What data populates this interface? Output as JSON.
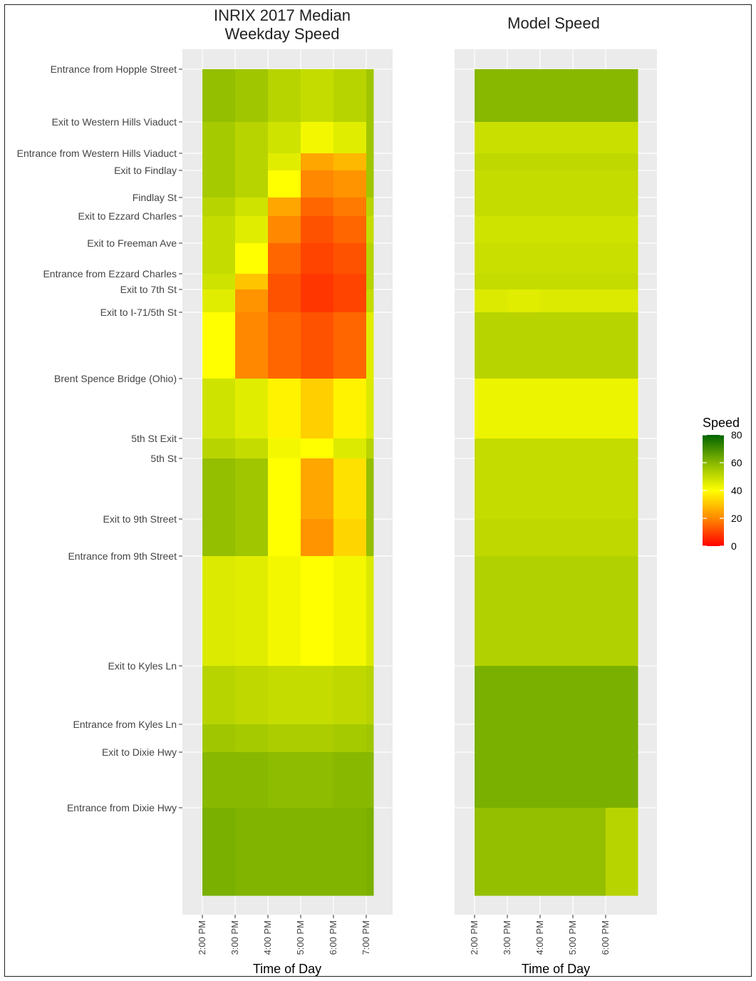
{
  "chart_data": [
    {
      "type": "heatmap",
      "title": "INRIX 2017 Median\nWeekday Speed",
      "xlabel": "Time of Day",
      "ylabel": "",
      "x_tick_labels": [
        "2:00 PM",
        "3:00 PM",
        "4:00 PM",
        "5:00 PM",
        "6:00 PM",
        "7:00 PM"
      ],
      "x_range": [
        "2:00 PM",
        "7:15 PM"
      ],
      "x_columns": [
        "2:00 PM",
        "3:00 PM",
        "4:00 PM",
        "5:00 PM",
        "6:00 PM",
        "7:00 PM"
      ],
      "y_segments": [
        {
          "label": "Entrance from Hopple Street",
          "speeds": [
            58,
            56,
            52,
            50,
            52,
            56
          ]
        },
        {
          "label": "Exit to Western Hills Viaduct",
          "speeds": [
            55,
            52,
            48,
            42,
            45,
            56
          ]
        },
        {
          "label": "Entrance from Western Hills Viaduct",
          "speeds": [
            55,
            52,
            45,
            25,
            28,
            56
          ]
        },
        {
          "label": "Exit to Findlay",
          "speeds": [
            55,
            52,
            40,
            20,
            22,
            56
          ]
        },
        {
          "label": "Findlay St",
          "speeds": [
            52,
            48,
            25,
            15,
            18,
            52
          ]
        },
        {
          "label": "Exit to Ezzard Charles",
          "speeds": [
            50,
            45,
            20,
            12,
            15,
            50
          ]
        },
        {
          "label": "Exit to Freeman Ave",
          "speeds": [
            50,
            40,
            15,
            10,
            12,
            52
          ]
        },
        {
          "label": "Entrance from Ezzard Charles",
          "speeds": [
            48,
            30,
            12,
            8,
            10,
            52
          ]
        },
        {
          "label": "Exit to 7th St",
          "speeds": [
            45,
            22,
            12,
            8,
            10,
            50
          ]
        },
        {
          "label": "Exit to I-71/5th St",
          "speeds": [
            40,
            20,
            15,
            12,
            15,
            45
          ]
        },
        {
          "label": "Brent Spence Bridge (Ohio)",
          "speeds": [
            48,
            45,
            38,
            32,
            38,
            46
          ]
        },
        {
          "label": "5th St Exit",
          "speeds": [
            52,
            50,
            42,
            40,
            46,
            52
          ]
        },
        {
          "label": "5th St",
          "speeds": [
            58,
            56,
            40,
            25,
            35,
            58
          ]
        },
        {
          "label": "Exit to 9th Street",
          "speeds": [
            58,
            56,
            40,
            22,
            33,
            58
          ]
        },
        {
          "label": "Entrance from 9th Street",
          "speeds": [
            46,
            45,
            42,
            40,
            42,
            46
          ]
        },
        {
          "label": "Exit to Kyles Ln",
          "speeds": [
            52,
            51,
            50,
            50,
            51,
            52
          ]
        },
        {
          "label": "Entrance from Kyles Ln",
          "speeds": [
            56,
            55,
            54,
            54,
            55,
            56
          ]
        },
        {
          "label": "Exit to Dixie Hwy",
          "speeds": [
            60,
            60,
            59,
            59,
            60,
            60
          ]
        },
        {
          "label": "Entrance from Dixie Hwy",
          "speeds": [
            62,
            61,
            61,
            61,
            61,
            62
          ]
        }
      ]
    },
    {
      "type": "heatmap",
      "title": "Model Speed",
      "xlabel": "Time of Day",
      "ylabel": "",
      "x_tick_labels": [
        "2:00 PM",
        "3:00 PM",
        "4:00 PM",
        "5:00 PM",
        "6:00 PM"
      ],
      "x_range": [
        "2:00 PM",
        "7:00 PM"
      ],
      "x_columns": [
        "2:00 PM",
        "3:00 PM",
        "4:00 PM",
        "5:00 PM",
        "6:00 PM"
      ],
      "y_segments": [
        {
          "label": "Entrance from Hopple Street",
          "speeds": [
            60,
            60,
            60,
            60,
            60
          ]
        },
        {
          "label": "Exit to Western Hills Viaduct",
          "speeds": [
            49,
            49,
            49,
            49,
            49
          ]
        },
        {
          "label": "Entrance from Western Hills Viaduct",
          "speeds": [
            51,
            51,
            51,
            51,
            51
          ]
        },
        {
          "label": "Exit to Findlay",
          "speeds": [
            50,
            50,
            50,
            50,
            50
          ]
        },
        {
          "label": "Findlay St",
          "speeds": [
            50,
            50,
            50,
            50,
            50
          ]
        },
        {
          "label": "Exit to Ezzard Charles",
          "speeds": [
            48,
            48,
            48,
            48,
            48
          ]
        },
        {
          "label": "Exit to Freeman Ave",
          "speeds": [
            49,
            49,
            49,
            49,
            49
          ]
        },
        {
          "label": "Entrance from Ezzard Charles",
          "speeds": [
            50,
            50,
            50,
            50,
            50
          ]
        },
        {
          "label": "Exit to 7th St",
          "speeds": [
            46,
            45,
            46,
            46,
            46
          ]
        },
        {
          "label": "Exit to I-71/5th St",
          "speeds": [
            52,
            52,
            52,
            52,
            52
          ]
        },
        {
          "label": "Brent Spence Bridge (Ohio)",
          "speeds": [
            43,
            43,
            43,
            43,
            43
          ]
        },
        {
          "label": "5th St Exit",
          "speeds": [
            50,
            50,
            50,
            50,
            50
          ]
        },
        {
          "label": "5th St",
          "speeds": [
            50,
            50,
            50,
            50,
            50
          ]
        },
        {
          "label": "Exit to 9th Street",
          "speeds": [
            51,
            51,
            51,
            51,
            51
          ]
        },
        {
          "label": "Entrance from 9th Street",
          "speeds": [
            53,
            53,
            53,
            53,
            53
          ]
        },
        {
          "label": "Exit to Kyles Ln",
          "speeds": [
            62,
            62,
            62,
            62,
            62
          ]
        },
        {
          "label": "Entrance from Kyles Ln",
          "speeds": [
            62,
            62,
            62,
            62,
            62
          ]
        },
        {
          "label": "Exit to Dixie Hwy",
          "speeds": [
            62,
            62,
            62,
            62,
            62
          ]
        },
        {
          "label": "Entrance from Dixie Hwy",
          "speeds": [
            58,
            58,
            58,
            58,
            52
          ]
        }
      ]
    }
  ],
  "legend": {
    "title": "Speed",
    "ticks": [
      "80",
      "60",
      "40",
      "20",
      "0"
    ],
    "tick_values": [
      80,
      60,
      40,
      20,
      0
    ],
    "placement": "right",
    "color_stops": [
      {
        "value": 0,
        "color": "#ff0000"
      },
      {
        "value": 20,
        "color": "#ff8800"
      },
      {
        "value": 40,
        "color": "#ffff00"
      },
      {
        "value": 60,
        "color": "#88b800"
      },
      {
        "value": 80,
        "color": "#006400"
      }
    ]
  },
  "colors": {
    "panel_bg": "#ebebeb",
    "grid": "#ffffff"
  }
}
